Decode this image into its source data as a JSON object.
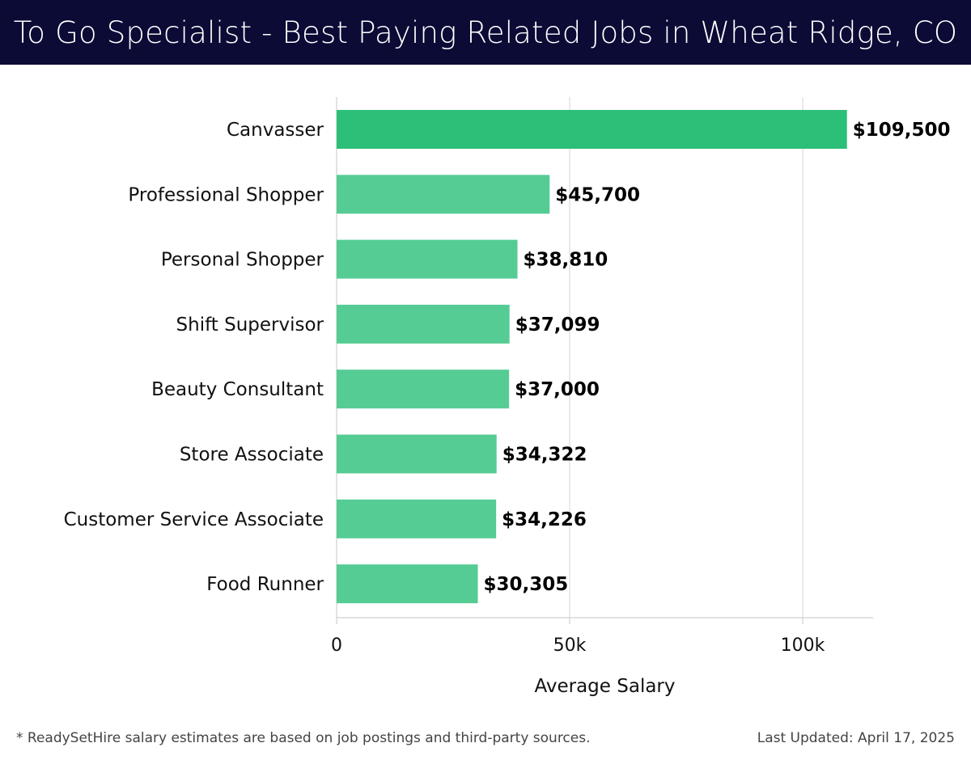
{
  "header": {
    "title": "To Go Specialist - Best Paying Related Jobs in Wheat Ridge, CO"
  },
  "chart_data": {
    "type": "bar",
    "orientation": "horizontal",
    "title": "To Go Specialist - Best Paying Related Jobs in Wheat Ridge, CO",
    "xlabel": "Average Salary",
    "ylabel": "",
    "xlim": [
      0,
      115000
    ],
    "x_ticks": [
      0,
      50000,
      100000
    ],
    "x_tick_labels": [
      "0",
      "50k",
      "100k"
    ],
    "grid": "vertical",
    "categories": [
      "Canvasser",
      "Professional Shopper",
      "Personal Shopper",
      "Shift Supervisor",
      "Beauty Consultant",
      "Store Associate",
      "Customer Service Associate",
      "Food Runner"
    ],
    "values": [
      109500,
      45700,
      38810,
      37099,
      37000,
      34322,
      34226,
      30305
    ],
    "value_labels": [
      "$109,500",
      "$45,700",
      "$38,810",
      "$37,099",
      "$37,000",
      "$34,322",
      "$34,226",
      "$30,305"
    ],
    "colors": {
      "highlight_bar": "#2bbf78",
      "bar": "#55cc94",
      "grid": "#e3e3e3",
      "axis": "#d0d0d0",
      "text": "#111111"
    }
  },
  "footer": {
    "note": "* ReadySetHire salary estimates are based on job postings and third-party sources.",
    "updated": "Last Updated: April 17, 2025"
  }
}
